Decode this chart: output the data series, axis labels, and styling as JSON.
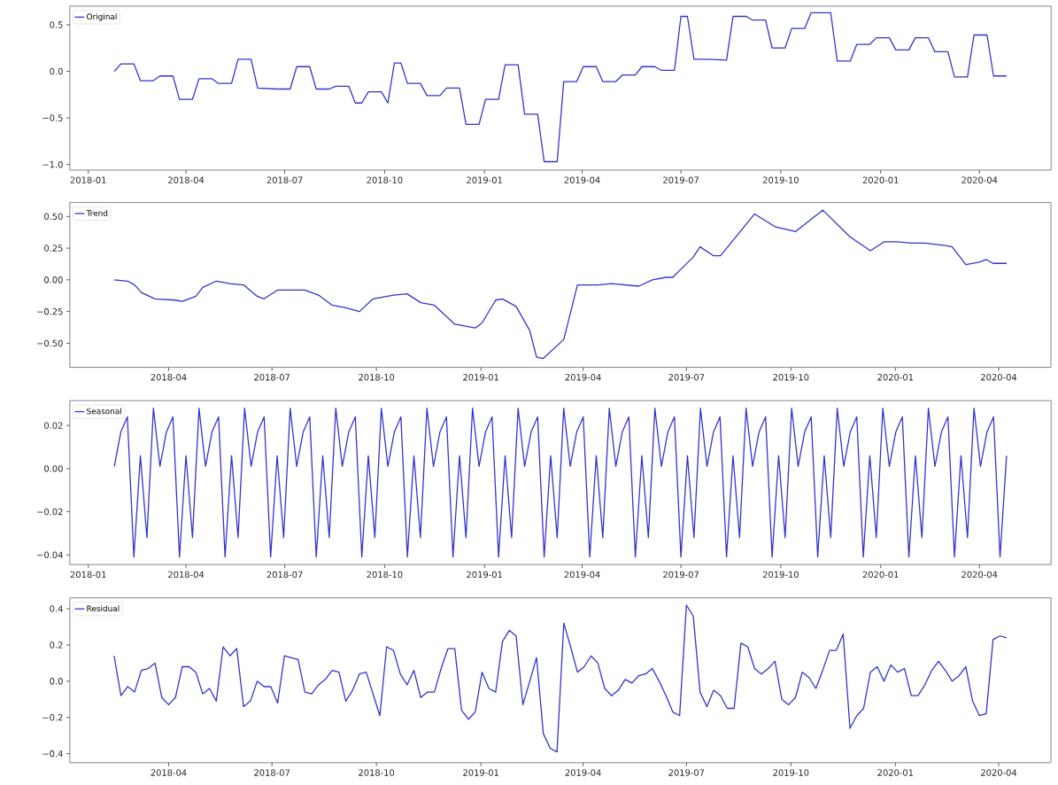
{
  "chart_data": [
    {
      "type": "line",
      "legend": "top left",
      "xlim": [
        "2017-12-15",
        "2020-06-06"
      ],
      "ylim": [
        -1.06,
        0.7
      ],
      "xticks": [
        "2018-01",
        "2018-04",
        "2018-07",
        "2018-10",
        "2019-01",
        "2019-04",
        "2019-07",
        "2019-10",
        "2020-01",
        "2020-04"
      ],
      "yticks": [
        {
          "value": -1.0,
          "label": "−1.0"
        },
        {
          "value": -0.5,
          "label": "−0.5"
        },
        {
          "value": 0.0,
          "label": "0.0"
        },
        {
          "value": 0.5,
          "label": "0.5"
        }
      ],
      "series": [
        {
          "name": "Original",
          "color": "#3333cc",
          "x": [
            "2018-01-25",
            "2018-01-31",
            "2018-02-12",
            "2018-02-18",
            "2018-03-02",
            "2018-03-08",
            "2018-03-20",
            "2018-03-26",
            "2018-04-07",
            "2018-04-13",
            "2018-04-25",
            "2018-05-01",
            "2018-05-13",
            "2018-05-19",
            "2018-05-31",
            "2018-06-06",
            "2018-06-24",
            "2018-07-06",
            "2018-07-12",
            "2018-07-24",
            "2018-07-30",
            "2018-08-11",
            "2018-08-17",
            "2018-08-29",
            "2018-09-04",
            "2018-09-10",
            "2018-09-16",
            "2018-09-28",
            "2018-10-04",
            "2018-10-10",
            "2018-10-16",
            "2018-10-22",
            "2018-11-03",
            "2018-11-09",
            "2018-11-21",
            "2018-11-27",
            "2018-12-09",
            "2018-12-15",
            "2018-12-27",
            "2019-01-02",
            "2019-01-14",
            "2019-01-20",
            "2019-02-01",
            "2019-02-07",
            "2019-02-19",
            "2019-02-25",
            "2019-03-09",
            "2019-03-15",
            "2019-03-27",
            "2019-04-02",
            "2019-04-14",
            "2019-04-20",
            "2019-05-02",
            "2019-05-08",
            "2019-05-20",
            "2019-05-26",
            "2019-06-07",
            "2019-06-13",
            "2019-06-25",
            "2019-07-01",
            "2019-07-07",
            "2019-07-13",
            "2019-07-25",
            "2019-08-12",
            "2019-08-18",
            "2019-08-30",
            "2019-09-05",
            "2019-09-17",
            "2019-09-23",
            "2019-10-05",
            "2019-10-11",
            "2019-10-23",
            "2019-10-29",
            "2019-11-16",
            "2019-11-22",
            "2019-12-04",
            "2019-12-10",
            "2019-12-22",
            "2019-12-28",
            "2020-01-09",
            "2020-01-15",
            "2020-01-27",
            "2020-02-02",
            "2020-02-14",
            "2020-02-20",
            "2020-03-03",
            "2020-03-09",
            "2020-03-21",
            "2020-03-27",
            "2020-04-08",
            "2020-04-14",
            "2020-04-26"
          ],
          "values": [
            0.0,
            0.08,
            0.08,
            -0.1,
            -0.1,
            -0.05,
            -0.05,
            -0.3,
            -0.3,
            -0.08,
            -0.08,
            -0.13,
            -0.13,
            0.13,
            0.13,
            -0.18,
            -0.19,
            -0.19,
            0.05,
            0.05,
            -0.19,
            -0.19,
            -0.16,
            -0.16,
            -0.34,
            -0.34,
            -0.22,
            -0.22,
            -0.34,
            0.09,
            0.09,
            -0.13,
            -0.13,
            -0.26,
            -0.26,
            -0.18,
            -0.18,
            -0.57,
            -0.57,
            -0.3,
            -0.3,
            0.07,
            0.07,
            -0.46,
            -0.46,
            -0.97,
            -0.97,
            -0.11,
            -0.11,
            0.05,
            0.05,
            -0.11,
            -0.11,
            -0.04,
            -0.04,
            0.05,
            0.05,
            0.01,
            0.01,
            0.59,
            0.59,
            0.13,
            0.13,
            0.12,
            0.59,
            0.59,
            0.55,
            0.55,
            0.25,
            0.25,
            0.46,
            0.46,
            0.63,
            0.63,
            0.11,
            0.11,
            0.29,
            0.29,
            0.36,
            0.36,
            0.23,
            0.23,
            0.36,
            0.36,
            0.21,
            0.21,
            -0.06,
            -0.06,
            0.39,
            0.39,
            -0.05,
            -0.05
          ]
        }
      ]
    },
    {
      "type": "line",
      "legend": "top left",
      "xlim": [
        "2018-01-04",
        "2020-05-17"
      ],
      "ylim": [
        -0.69,
        0.61
      ],
      "xticks": [
        "2018-04",
        "2018-07",
        "2018-10",
        "2019-01",
        "2019-04",
        "2019-07",
        "2019-10",
        "2020-01",
        "2020-04"
      ],
      "yticks": [
        {
          "value": -0.5,
          "label": "−0.50"
        },
        {
          "value": -0.25,
          "label": "−0.25"
        },
        {
          "value": 0.0,
          "label": "0.00"
        },
        {
          "value": 0.25,
          "label": "0.25"
        },
        {
          "value": 0.5,
          "label": "0.50"
        }
      ],
      "series": [
        {
          "name": "Trend",
          "color": "#3333cc",
          "x": [
            "2018-02-12",
            "2018-02-24",
            "2018-03-02",
            "2018-03-08",
            "2018-03-20",
            "2018-04-07",
            "2018-04-13",
            "2018-04-25",
            "2018-05-01",
            "2018-05-13",
            "2018-05-25",
            "2018-06-06",
            "2018-06-18",
            "2018-06-24",
            "2018-07-06",
            "2018-07-30",
            "2018-08-11",
            "2018-08-23",
            "2018-09-04",
            "2018-09-16",
            "2018-09-28",
            "2018-10-16",
            "2018-10-28",
            "2018-11-09",
            "2018-11-21",
            "2018-12-09",
            "2018-12-27",
            "2019-01-02",
            "2019-01-14",
            "2019-01-20",
            "2019-02-01",
            "2019-02-13",
            "2019-02-19",
            "2019-02-25",
            "2019-03-15",
            "2019-03-27",
            "2019-04-14",
            "2019-04-26",
            "2019-05-20",
            "2019-06-01",
            "2019-06-13",
            "2019-06-19",
            "2019-07-07",
            "2019-07-13",
            "2019-07-25",
            "2019-07-31",
            "2019-08-30",
            "2019-09-17",
            "2019-10-05",
            "2019-10-29",
            "2019-11-22",
            "2019-12-10",
            "2019-12-22",
            "2020-01-03",
            "2020-01-15",
            "2020-01-27",
            "2020-02-14",
            "2020-02-20",
            "2020-03-03",
            "2020-03-15",
            "2020-03-21",
            "2020-03-27",
            "2020-04-08"
          ],
          "values": [
            0.0,
            -0.01,
            -0.04,
            -0.1,
            -0.15,
            -0.16,
            -0.17,
            -0.13,
            -0.06,
            -0.01,
            -0.03,
            -0.04,
            -0.13,
            -0.15,
            -0.08,
            -0.08,
            -0.12,
            -0.2,
            -0.22,
            -0.25,
            -0.15,
            -0.12,
            -0.11,
            -0.18,
            -0.2,
            -0.35,
            -0.38,
            -0.34,
            -0.16,
            -0.15,
            -0.21,
            -0.4,
            -0.61,
            -0.62,
            -0.47,
            -0.04,
            -0.04,
            -0.03,
            -0.05,
            0.0,
            0.02,
            0.02,
            0.18,
            0.26,
            0.19,
            0.19,
            0.52,
            0.42,
            0.38,
            0.55,
            0.34,
            0.23,
            0.3,
            0.3,
            0.29,
            0.29,
            0.27,
            0.26,
            0.12,
            0.14,
            0.16,
            0.13,
            0.13
          ]
        }
      ]
    },
    {
      "type": "line",
      "legend": "top left",
      "xlim": [
        "2017-12-15",
        "2020-06-06"
      ],
      "ylim": [
        -0.0445,
        0.0315
      ],
      "xticks": [
        "2018-01",
        "2018-04",
        "2018-07",
        "2018-10",
        "2019-01",
        "2019-04",
        "2019-07",
        "2019-10",
        "2020-01",
        "2020-04"
      ],
      "yticks": [
        {
          "value": -0.04,
          "label": "−0.04"
        },
        {
          "value": -0.02,
          "label": "−0.02"
        },
        {
          "value": 0.0,
          "label": "0.00"
        },
        {
          "value": 0.02,
          "label": "0.02"
        }
      ],
      "series": [
        {
          "name": "Seasonal",
          "color": "#3333cc",
          "x": [
            "2018-01-25",
            "2018-01-31",
            "2018-02-06",
            "2018-02-12",
            "2018-02-18",
            "2018-02-24",
            "2018-03-02",
            "2018-03-08",
            "2018-03-14",
            "2018-03-20",
            "2018-03-26",
            "2018-04-01",
            "2018-04-07",
            "2018-04-13",
            "2018-04-19",
            "2018-04-25",
            "2018-05-01",
            "2018-05-07",
            "2018-05-13",
            "2018-05-19",
            "2018-05-25",
            "2018-05-31",
            "2018-06-06",
            "2018-06-12",
            "2018-06-18",
            "2018-06-24",
            "2018-06-30",
            "2018-07-06",
            "2018-07-12",
            "2018-07-18",
            "2018-07-24",
            "2018-07-30",
            "2018-08-05",
            "2018-08-11",
            "2018-08-17",
            "2018-08-23",
            "2018-08-29",
            "2018-09-04",
            "2018-09-10",
            "2018-09-16",
            "2018-09-22",
            "2018-09-28",
            "2018-10-04",
            "2018-10-10",
            "2018-10-16",
            "2018-10-22",
            "2018-10-28",
            "2018-11-03",
            "2018-11-09",
            "2018-11-15",
            "2018-11-21",
            "2018-11-27",
            "2018-12-03",
            "2018-12-09",
            "2018-12-15",
            "2018-12-21",
            "2018-12-27",
            "2019-01-02",
            "2019-01-08",
            "2019-01-14",
            "2019-01-20",
            "2019-01-26",
            "2019-02-01",
            "2019-02-07",
            "2019-02-13",
            "2019-02-19",
            "2019-02-25",
            "2019-03-03",
            "2019-03-09",
            "2019-03-15",
            "2019-03-21",
            "2019-03-27",
            "2019-04-02",
            "2019-04-08",
            "2019-04-14",
            "2019-04-20",
            "2019-04-26",
            "2019-05-02",
            "2019-05-08",
            "2019-05-14",
            "2019-05-20",
            "2019-05-26",
            "2019-06-01",
            "2019-06-07",
            "2019-06-13",
            "2019-06-19",
            "2019-06-25",
            "2019-07-01",
            "2019-07-07",
            "2019-07-13",
            "2019-07-19",
            "2019-07-25",
            "2019-07-31",
            "2019-08-06",
            "2019-08-12",
            "2019-08-18",
            "2019-08-24",
            "2019-08-30",
            "2019-09-05",
            "2019-09-11",
            "2019-09-17",
            "2019-09-23",
            "2019-09-29",
            "2019-10-05",
            "2019-10-11",
            "2019-10-17",
            "2019-10-23",
            "2019-10-29",
            "2019-11-04",
            "2019-11-10",
            "2019-11-16",
            "2019-11-22",
            "2019-11-28",
            "2019-12-04",
            "2019-12-10",
            "2019-12-16",
            "2019-12-22",
            "2019-12-28",
            "2020-01-03",
            "2020-01-09",
            "2020-01-15",
            "2020-01-21",
            "2020-01-27",
            "2020-02-02",
            "2020-02-08",
            "2020-02-14",
            "2020-02-20",
            "2020-02-26",
            "2020-03-03",
            "2020-03-09",
            "2020-03-15",
            "2020-03-21",
            "2020-03-27",
            "2020-04-02",
            "2020-04-08",
            "2020-04-14",
            "2020-04-20",
            "2020-04-26"
          ],
          "values": [
            0.001,
            0.017,
            0.024,
            -0.041,
            0.006,
            -0.032,
            0.028,
            0.001,
            0.017,
            0.024,
            -0.041,
            0.006,
            -0.032,
            0.028,
            0.001,
            0.017,
            0.024,
            -0.041,
            0.006,
            -0.032,
            0.028,
            0.001,
            0.017,
            0.024,
            -0.041,
            0.006,
            -0.032,
            0.028,
            0.001,
            0.017,
            0.024,
            -0.041,
            0.006,
            -0.032,
            0.028,
            0.001,
            0.017,
            0.024,
            -0.041,
            0.006,
            -0.032,
            0.028,
            0.001,
            0.017,
            0.024,
            -0.041,
            0.006,
            -0.032,
            0.028,
            0.001,
            0.017,
            0.024,
            -0.041,
            0.006,
            -0.032,
            0.028,
            0.001,
            0.017,
            0.024,
            -0.041,
            0.006,
            -0.032,
            0.028,
            0.001,
            0.017,
            0.024,
            -0.041,
            0.006,
            -0.032,
            0.028,
            0.001,
            0.017,
            0.024,
            -0.041,
            0.006,
            -0.032,
            0.028,
            0.001,
            0.017,
            0.024,
            -0.041,
            0.006,
            -0.032,
            0.028,
            0.001,
            0.017,
            0.024,
            -0.041,
            0.006,
            -0.032,
            0.028,
            0.001,
            0.017,
            0.024,
            -0.041,
            0.006,
            -0.032,
            0.028,
            0.001,
            0.017,
            0.024,
            -0.041,
            0.006,
            -0.032,
            0.028,
            0.001,
            0.017,
            0.024,
            -0.041,
            0.006,
            -0.032,
            0.028,
            0.001,
            0.017,
            0.024,
            -0.041,
            0.006,
            -0.032,
            0.028,
            0.001,
            0.017,
            0.024,
            -0.041,
            0.006,
            -0.032,
            0.028,
            0.001,
            0.017,
            0.024,
            -0.041,
            0.006,
            -0.032,
            0.028,
            0.001,
            0.017,
            0.024,
            -0.041,
            0.006
          ]
        }
      ]
    },
    {
      "type": "line",
      "legend": "top left",
      "xlim": [
        "2018-01-04",
        "2020-05-17"
      ],
      "ylim": [
        -0.45,
        0.46
      ],
      "xticks": [
        "2018-04",
        "2018-07",
        "2018-10",
        "2019-01",
        "2019-04",
        "2019-07",
        "2019-10",
        "2020-01",
        "2020-04"
      ],
      "yticks": [
        {
          "value": -0.4,
          "label": "−0.4"
        },
        {
          "value": -0.2,
          "label": "−0.2"
        },
        {
          "value": 0.0,
          "label": "0.0"
        },
        {
          "value": 0.2,
          "label": "0.2"
        },
        {
          "value": 0.4,
          "label": "0.4"
        }
      ],
      "series": [
        {
          "name": "Residual",
          "color": "#3333cc",
          "x": [
            "2018-02-12",
            "2018-02-18",
            "2018-02-24",
            "2018-03-02",
            "2018-03-08",
            "2018-03-14",
            "2018-03-20",
            "2018-03-26",
            "2018-04-01",
            "2018-04-07",
            "2018-04-13",
            "2018-04-19",
            "2018-04-25",
            "2018-05-01",
            "2018-05-07",
            "2018-05-13",
            "2018-05-19",
            "2018-05-25",
            "2018-05-31",
            "2018-06-06",
            "2018-06-12",
            "2018-06-18",
            "2018-06-24",
            "2018-06-30",
            "2018-07-06",
            "2018-07-12",
            "2018-07-18",
            "2018-07-24",
            "2018-07-30",
            "2018-08-05",
            "2018-08-11",
            "2018-08-17",
            "2018-08-23",
            "2018-08-29",
            "2018-09-04",
            "2018-09-10",
            "2018-09-16",
            "2018-09-22",
            "2018-09-28",
            "2018-10-04",
            "2018-10-10",
            "2018-10-16",
            "2018-10-22",
            "2018-10-28",
            "2018-11-03",
            "2018-11-09",
            "2018-11-15",
            "2018-11-21",
            "2018-11-27",
            "2018-12-03",
            "2018-12-09",
            "2018-12-15",
            "2018-12-21",
            "2018-12-27",
            "2019-01-02",
            "2019-01-08",
            "2019-01-14",
            "2019-01-20",
            "2019-01-26",
            "2019-02-01",
            "2019-02-07",
            "2019-02-19",
            "2019-02-25",
            "2019-03-03",
            "2019-03-09",
            "2019-03-15",
            "2019-03-21",
            "2019-03-27",
            "2019-04-02",
            "2019-04-08",
            "2019-04-14",
            "2019-04-20",
            "2019-04-26",
            "2019-05-02",
            "2019-05-08",
            "2019-05-14",
            "2019-05-20",
            "2019-05-26",
            "2019-06-01",
            "2019-06-07",
            "2019-06-13",
            "2019-06-19",
            "2019-06-25",
            "2019-07-01",
            "2019-07-07",
            "2019-07-13",
            "2019-07-19",
            "2019-07-25",
            "2019-07-31",
            "2019-08-06",
            "2019-08-12",
            "2019-08-18",
            "2019-08-24",
            "2019-08-30",
            "2019-09-05",
            "2019-09-11",
            "2019-09-17",
            "2019-09-23",
            "2019-09-29",
            "2019-10-05",
            "2019-10-11",
            "2019-10-17",
            "2019-10-23",
            "2019-10-29",
            "2019-11-04",
            "2019-11-10",
            "2019-11-16",
            "2019-11-22",
            "2019-11-28",
            "2019-12-04",
            "2019-12-10",
            "2019-12-16",
            "2019-12-22",
            "2019-12-28",
            "2020-01-03",
            "2020-01-09",
            "2020-01-15",
            "2020-01-21",
            "2020-01-27",
            "2020-02-02",
            "2020-02-08",
            "2020-02-14",
            "2020-02-20",
            "2020-02-26",
            "2020-03-03",
            "2020-03-09",
            "2020-03-15",
            "2020-03-21",
            "2020-03-27",
            "2020-04-02",
            "2020-04-08"
          ],
          "values": [
            0.14,
            -0.08,
            -0.03,
            -0.06,
            0.06,
            0.07,
            0.1,
            -0.09,
            -0.13,
            -0.09,
            0.08,
            0.08,
            0.05,
            -0.07,
            -0.04,
            -0.11,
            0.19,
            0.14,
            0.18,
            -0.14,
            -0.11,
            0.0,
            -0.03,
            -0.03,
            -0.12,
            0.14,
            0.13,
            0.12,
            -0.06,
            -0.07,
            -0.02,
            0.01,
            0.06,
            0.05,
            -0.11,
            -0.05,
            0.04,
            0.05,
            -0.07,
            -0.19,
            0.19,
            0.17,
            0.04,
            -0.02,
            0.06,
            -0.09,
            -0.06,
            -0.06,
            0.07,
            0.18,
            0.18,
            -0.16,
            -0.21,
            -0.17,
            0.05,
            -0.04,
            -0.06,
            0.22,
            0.28,
            0.25,
            -0.13,
            0.13,
            -0.29,
            -0.37,
            -0.39,
            0.32,
            0.19,
            0.05,
            0.08,
            0.14,
            0.1,
            -0.04,
            -0.08,
            -0.05,
            0.01,
            -0.01,
            0.03,
            0.04,
            0.07,
            0.0,
            -0.08,
            -0.17,
            -0.19,
            0.42,
            0.36,
            -0.06,
            -0.14,
            -0.05,
            -0.08,
            -0.15,
            -0.15,
            0.21,
            0.19,
            0.07,
            0.04,
            0.07,
            0.11,
            -0.1,
            -0.13,
            -0.09,
            0.05,
            0.02,
            -0.04,
            0.06,
            0.17,
            0.17,
            0.26,
            -0.26,
            -0.19,
            -0.15,
            0.05,
            0.08,
            0.0,
            0.09,
            0.05,
            0.07,
            -0.08,
            -0.08,
            -0.02,
            0.06,
            0.11,
            0.06,
            0.0,
            0.03,
            0.08,
            -0.11,
            -0.19,
            -0.18,
            0.23,
            0.25,
            0.24
          ]
        }
      ]
    }
  ]
}
